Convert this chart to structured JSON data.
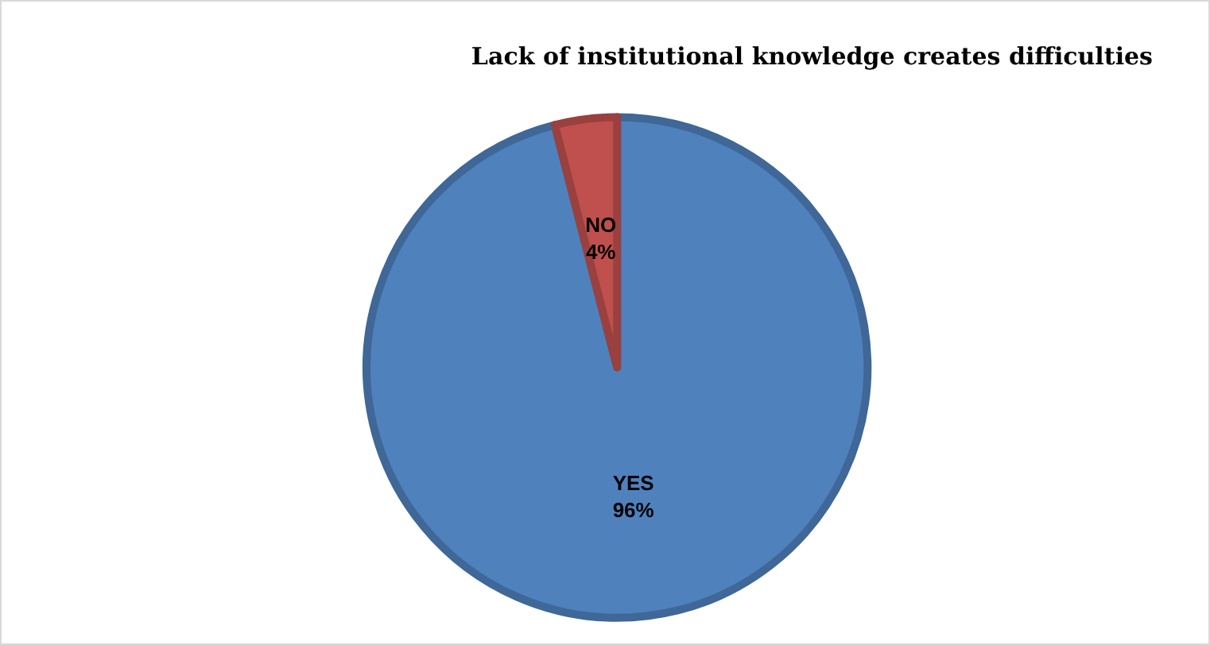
{
  "chart_data": {
    "type": "pie",
    "title": "Lack of institutional knowledge creates difficulties",
    "categories": [
      "YES",
      "NO"
    ],
    "values": [
      96,
      4
    ],
    "colors": [
      "#4f81bd",
      "#c0504d"
    ],
    "value_labels": [
      "96%",
      "4%"
    ],
    "legend": false
  }
}
